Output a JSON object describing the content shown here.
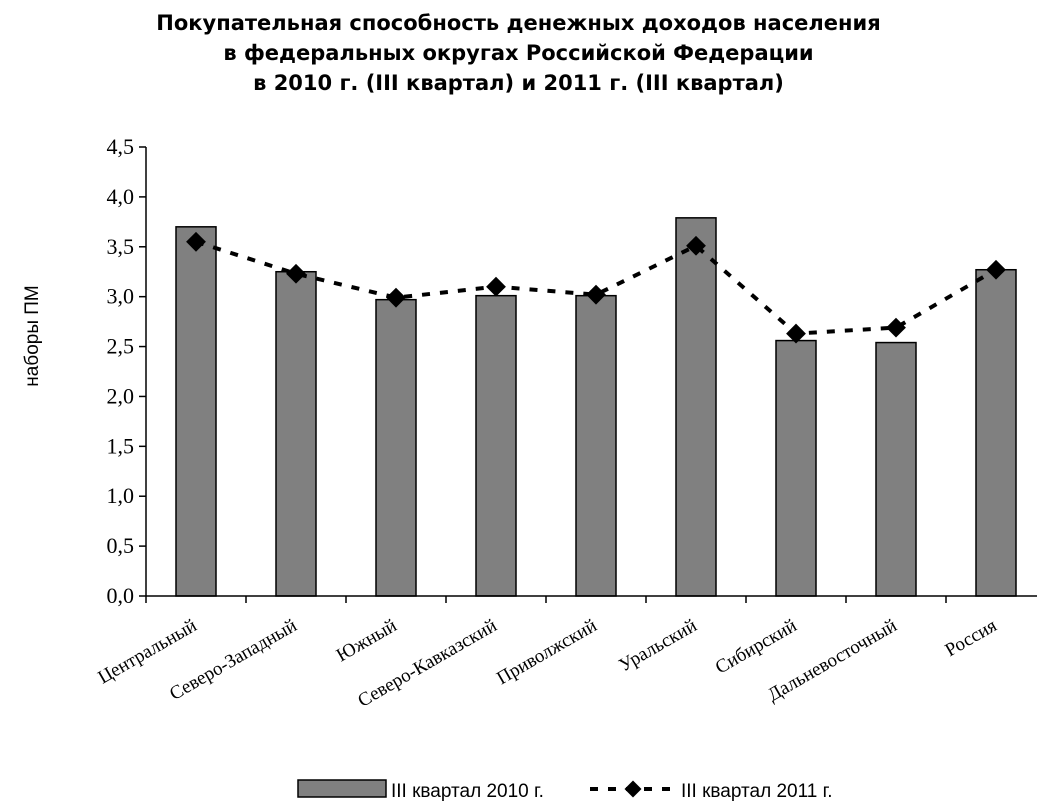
{
  "chart_data": {
    "type": "bar",
    "title_lines": [
      "Покупательная способность денежных доходов населения",
      "в федеральных округах Российской Федерации",
      "в 2010 г. (III квартал) и 2011 г. (III квартал)"
    ],
    "ylabel": "наборы ПМ",
    "xlabel": "",
    "ylim": [
      0,
      4.5
    ],
    "y_ticks": [
      "0,0",
      "0,5",
      "1,0",
      "1,5",
      "2,0",
      "2,5",
      "3,0",
      "3,5",
      "4,0",
      "4,5"
    ],
    "categories": [
      "Центральный",
      "Северо-Западный",
      "Южный",
      "Северо-Кавказский",
      "Приволжский",
      "Уральский",
      "Сибирский",
      "Дальневосточный",
      "Россия"
    ],
    "series": [
      {
        "name": "III квартал 2010 г.",
        "kind": "bar",
        "color": "#808080",
        "values": [
          3.7,
          3.25,
          2.97,
          3.01,
          3.01,
          3.79,
          2.56,
          2.54,
          3.27
        ]
      },
      {
        "name": "III квартал 2011 г.",
        "kind": "line-dashed-diamond",
        "color": "#000000",
        "values": [
          3.55,
          3.23,
          2.99,
          3.1,
          3.02,
          3.51,
          2.63,
          2.69,
          3.27
        ]
      }
    ],
    "legend_position": "bottom",
    "grid": false
  }
}
